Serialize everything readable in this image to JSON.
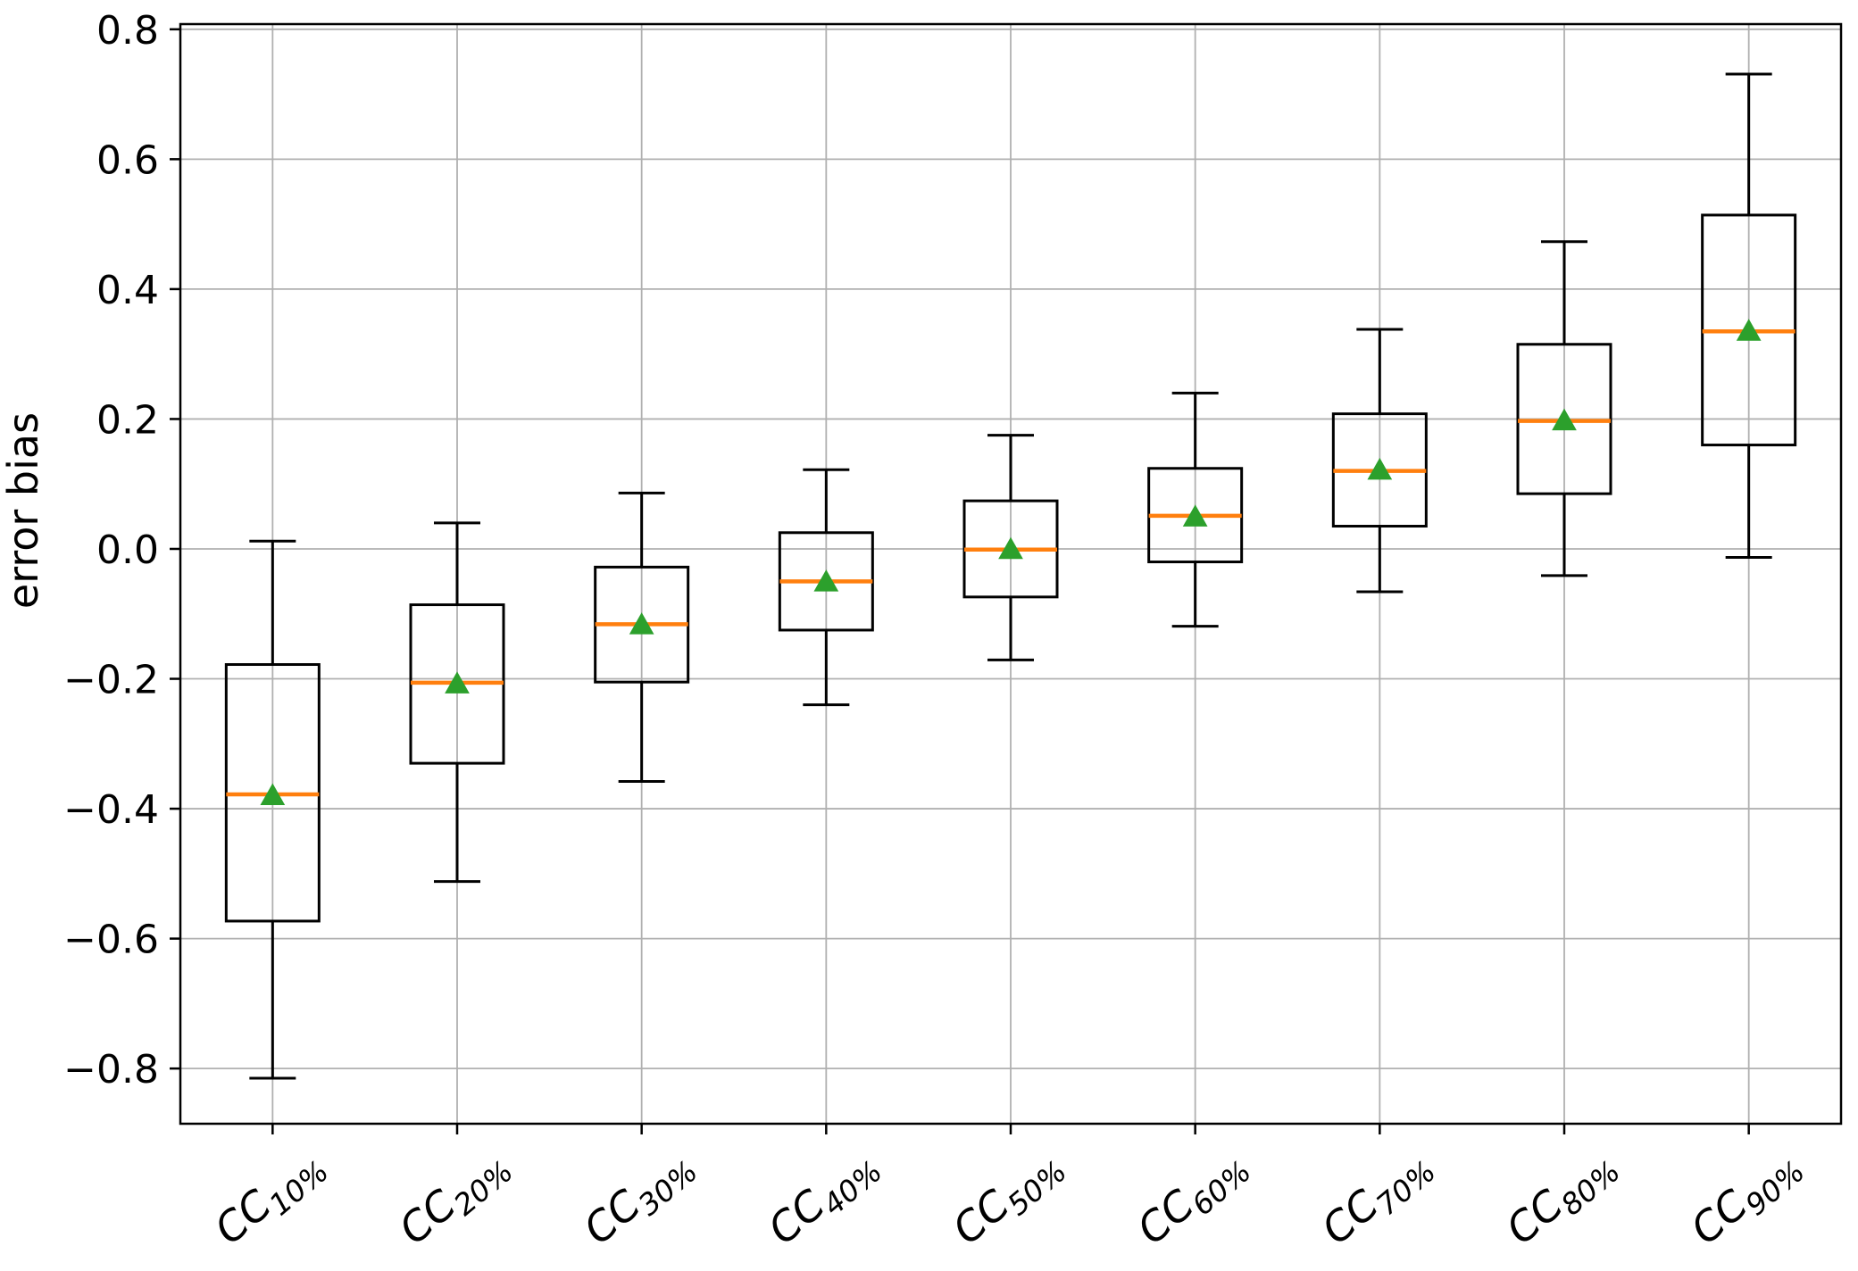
{
  "figure": {
    "background": "#ffffff"
  },
  "chart_data": {
    "type": "boxplot",
    "title": "",
    "xlabel": "",
    "ylabel": "error bias",
    "grid": true,
    "legend": "none",
    "ylim": [
      -0.885,
      0.808
    ],
    "yticks": [
      {
        "value": 0.8,
        "label": "0.8"
      },
      {
        "value": 0.6,
        "label": "0.6"
      },
      {
        "value": 0.4,
        "label": "0.4"
      },
      {
        "value": 0.2,
        "label": "0.2"
      },
      {
        "value": 0.0,
        "label": "0.0"
      },
      {
        "value": -0.2,
        "label": "−0.2"
      },
      {
        "value": -0.4,
        "label": "−0.4"
      },
      {
        "value": -0.6,
        "label": "−0.6"
      },
      {
        "value": -0.8,
        "label": "−0.8"
      }
    ],
    "categories": [
      "CC10%",
      "CC20%",
      "CC30%",
      "CC40%",
      "CC50%",
      "CC60%",
      "CC70%",
      "CC80%",
      "CC90%"
    ],
    "category_label_parts": [
      {
        "base": "CC",
        "sub": "10%"
      },
      {
        "base": "CC",
        "sub": "20%"
      },
      {
        "base": "CC",
        "sub": "30%"
      },
      {
        "base": "CC",
        "sub": "40%"
      },
      {
        "base": "CC",
        "sub": "50%"
      },
      {
        "base": "CC",
        "sub": "60%"
      },
      {
        "base": "CC",
        "sub": "70%"
      },
      {
        "base": "CC",
        "sub": "80%"
      },
      {
        "base": "CC",
        "sub": "90%"
      }
    ],
    "series": [
      {
        "name": "CC10%",
        "whisker_low": -0.815,
        "q1": -0.573,
        "median": -0.378,
        "q3": -0.178,
        "whisker_high": 0.012,
        "mean": -0.38
      },
      {
        "name": "CC20%",
        "whisker_low": -0.512,
        "q1": -0.33,
        "median": -0.206,
        "q3": -0.086,
        "whisker_high": 0.04,
        "mean": -0.208
      },
      {
        "name": "CC30%",
        "whisker_low": -0.358,
        "q1": -0.205,
        "median": -0.116,
        "q3": -0.028,
        "whisker_high": 0.086,
        "mean": -0.117
      },
      {
        "name": "CC40%",
        "whisker_low": -0.24,
        "q1": -0.125,
        "median": -0.05,
        "q3": 0.025,
        "whisker_high": 0.122,
        "mean": -0.051
      },
      {
        "name": "CC50%",
        "whisker_low": -0.171,
        "q1": -0.074,
        "median": -0.001,
        "q3": 0.074,
        "whisker_high": 0.175,
        "mean": -0.001
      },
      {
        "name": "CC60%",
        "whisker_low": -0.119,
        "q1": -0.02,
        "median": 0.051,
        "q3": 0.124,
        "whisker_high": 0.24,
        "mean": 0.049
      },
      {
        "name": "CC70%",
        "whisker_low": -0.066,
        "q1": 0.035,
        "median": 0.12,
        "q3": 0.208,
        "whisker_high": 0.338,
        "mean": 0.121
      },
      {
        "name": "CC80%",
        "whisker_low": -0.041,
        "q1": 0.085,
        "median": 0.197,
        "q3": 0.315,
        "whisker_high": 0.473,
        "mean": 0.197
      },
      {
        "name": "CC90%",
        "whisker_low": -0.013,
        "q1": 0.16,
        "median": 0.335,
        "q3": 0.514,
        "whisker_high": 0.731,
        "mean": 0.335
      }
    ],
    "colors": {
      "box_line": "#000000",
      "median_line": "#ff7f0e",
      "mean_marker": "#2ca02c",
      "gridline": "#b0b0b0",
      "spine": "#000000",
      "background": "#ffffff"
    }
  }
}
